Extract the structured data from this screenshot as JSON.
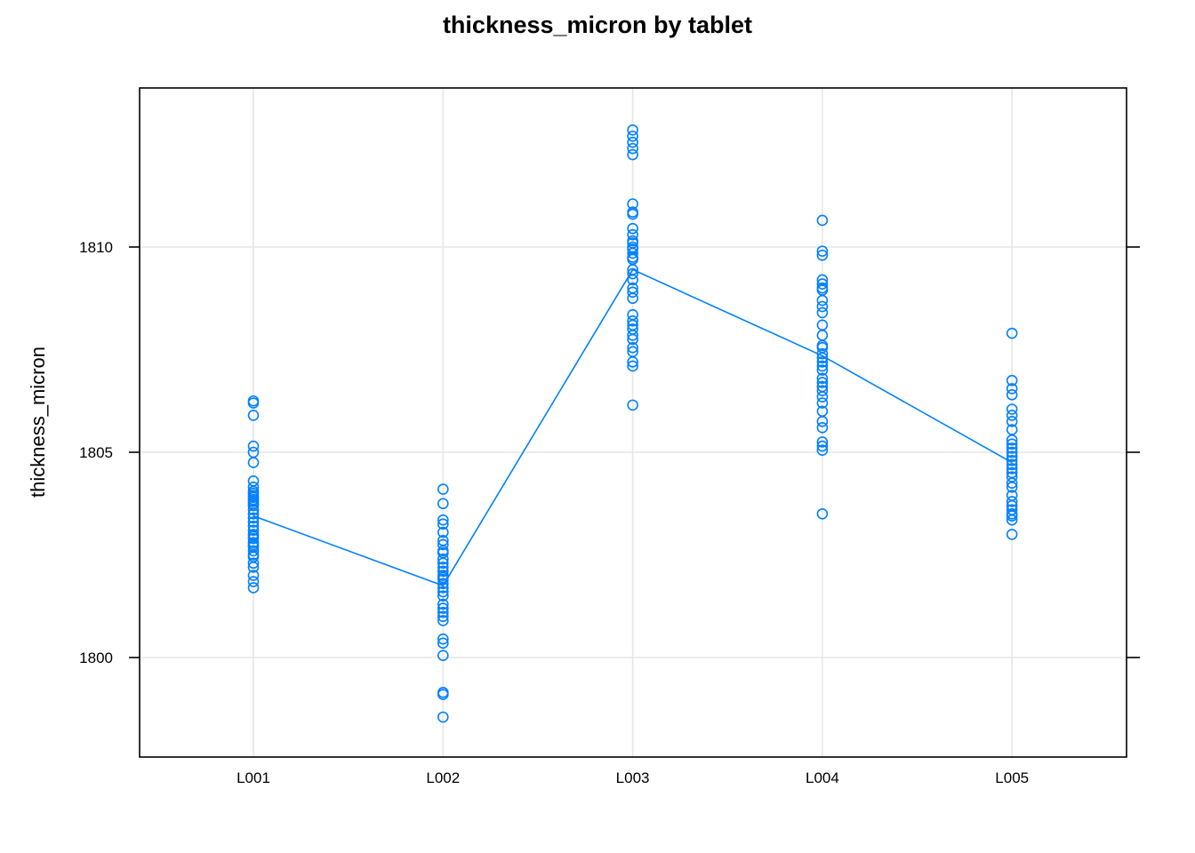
{
  "chart_data": {
    "type": "scatter",
    "title": "thickness_micron by tablet",
    "xlabel": "",
    "ylabel": "thickness_micron",
    "categories": [
      "L001",
      "L002",
      "L003",
      "L004",
      "L005"
    ],
    "y_ticks": [
      1800,
      1805,
      1810
    ],
    "ylim": [
      1797.6,
      1813.9
    ],
    "grid": true,
    "right_ticks": true,
    "color": "#0080ff",
    "series": [
      {
        "category": "L001",
        "values": [
          1806.2,
          1806.25,
          1805.9,
          1805.15,
          1805.0,
          1804.75,
          1804.3,
          1804.15,
          1804.05,
          1804.0,
          1803.95,
          1803.9,
          1803.85,
          1803.8,
          1803.75,
          1803.7,
          1803.6,
          1803.5,
          1803.4,
          1803.3,
          1803.2,
          1803.1,
          1803.0,
          1802.95,
          1802.9,
          1802.8,
          1802.75,
          1802.7,
          1802.6,
          1802.5,
          1802.45,
          1802.3,
          1802.2,
          1802.0,
          1801.85,
          1801.7
        ],
        "mean": 1803.45
      },
      {
        "category": "L002",
        "values": [
          1804.1,
          1803.75,
          1803.35,
          1803.25,
          1803.05,
          1802.85,
          1802.75,
          1802.6,
          1802.55,
          1802.4,
          1802.3,
          1802.2,
          1802.1,
          1802.0,
          1801.95,
          1801.9,
          1801.8,
          1801.7,
          1801.6,
          1801.5,
          1801.3,
          1801.2,
          1801.1,
          1801.0,
          1800.9,
          1800.45,
          1800.35,
          1800.05,
          1799.15,
          1799.1,
          1798.55
        ],
        "mean": 1801.75
      },
      {
        "category": "L003",
        "values": [
          1812.85,
          1812.7,
          1812.55,
          1812.4,
          1812.25,
          1811.05,
          1810.85,
          1810.8,
          1810.45,
          1810.3,
          1810.15,
          1810.1,
          1810.0,
          1809.95,
          1809.85,
          1809.75,
          1809.7,
          1809.45,
          1809.35,
          1809.2,
          1809.0,
          1808.9,
          1808.75,
          1808.35,
          1808.2,
          1808.1,
          1808.0,
          1807.85,
          1807.75,
          1807.55,
          1807.45,
          1807.2,
          1807.1,
          1806.15
        ],
        "mean": 1809.45
      },
      {
        "category": "L004",
        "values": [
          1810.65,
          1809.9,
          1809.8,
          1809.2,
          1809.1,
          1809.0,
          1808.95,
          1808.7,
          1808.55,
          1808.4,
          1808.1,
          1807.85,
          1807.6,
          1807.55,
          1807.4,
          1807.3,
          1807.2,
          1807.1,
          1807.0,
          1806.8,
          1806.7,
          1806.6,
          1806.5,
          1806.35,
          1806.2,
          1806.0,
          1805.75,
          1805.6,
          1805.25,
          1805.15,
          1805.05,
          1803.5
        ],
        "mean": 1807.35
      },
      {
        "category": "L005",
        "values": [
          1807.9,
          1806.75,
          1806.55,
          1806.4,
          1806.05,
          1805.9,
          1805.75,
          1805.55,
          1805.3,
          1805.2,
          1805.1,
          1805.0,
          1804.9,
          1804.8,
          1804.7,
          1804.6,
          1804.5,
          1804.4,
          1804.25,
          1804.15,
          1803.95,
          1803.8,
          1803.7,
          1803.6,
          1803.5,
          1803.45,
          1803.35,
          1803.0
        ],
        "mean": 1804.75
      }
    ]
  }
}
